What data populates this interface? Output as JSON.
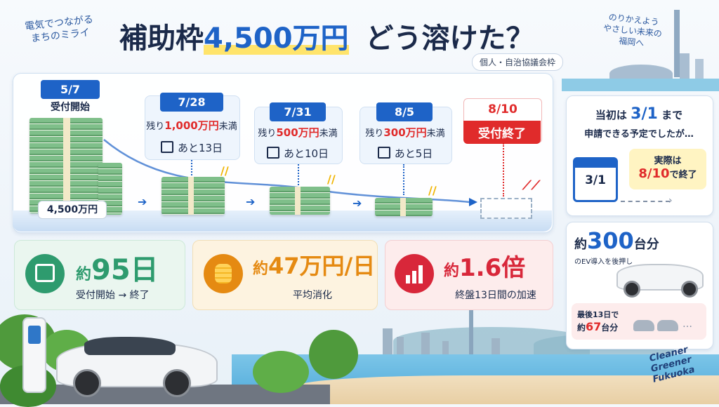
{
  "brand_left": [
    "電気でつながる",
    "まちのミライ"
  ],
  "brand_right": [
    "のりかえよう",
    "やさしい未来の",
    "福岡へ"
  ],
  "title": {
    "pre": "補助枠",
    "amount": "4,500万円",
    "post": "どう溶けた？"
  },
  "subtitle": "個人・自治協議会枠",
  "timeline": {
    "start": {
      "date": "5/7",
      "label": "受付開始",
      "amount": "4,500万円"
    },
    "milestones": [
      {
        "date": "7/28",
        "remain_pre": "残り",
        "remain_value": "1,000万円",
        "remain_post": "未満",
        "days": "あと13日"
      },
      {
        "date": "7/31",
        "remain_pre": "残り",
        "remain_value": "500万円",
        "remain_post": "未満",
        "days": "あと10日"
      },
      {
        "date": "8/5",
        "remain_pre": "残り",
        "remain_value": "300万円",
        "remain_post": "未満",
        "days": "あと5日"
      }
    ],
    "end": {
      "date": "8/10",
      "label": "受付終了"
    }
  },
  "stats": [
    {
      "icon": "calendar-icon",
      "prefix": "約",
      "value": "95日",
      "sub": "受付開始 → 終了",
      "color": "#2e9b6e"
    },
    {
      "icon": "coins-icon",
      "prefix": "約",
      "value": "47万円/日",
      "sub": "平均消化",
      "color": "#e58a12"
    },
    {
      "icon": "growth-chart-icon",
      "prefix": "約",
      "value": "1.6倍",
      "sub": "終盤13日間の加速",
      "color": "#d8273a"
    }
  ],
  "plan_card": {
    "line1_pre": "当初は",
    "line1_date": "3/1",
    "line1_post": "まで",
    "line2": "申請できる予定でしたが…",
    "calendar_date": "3/1",
    "actual_pre": "実際は",
    "actual_date": "8/10",
    "actual_post": "で終了"
  },
  "ev_card": {
    "prefix": "約",
    "value": "300",
    "unit": "台分",
    "sub": "のEV導入を後押し",
    "last_label": "最後13日で",
    "last_prefix": "約",
    "last_value": "67",
    "last_unit": "台分",
    "ellipsis": "…"
  },
  "tagline": [
    "Cleaner",
    "Greener",
    "Fukuoka"
  ],
  "colors": {
    "primary": "#1e63c7",
    "alert": "#e02b2b",
    "navy": "#1b2a4a"
  }
}
